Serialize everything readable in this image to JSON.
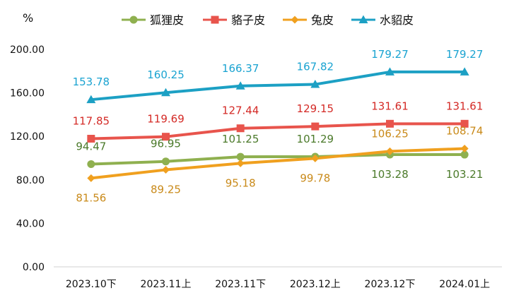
{
  "chart_data": {
    "type": "line",
    "unit_label": "%",
    "categories": [
      "2023.10下",
      "2023.11上",
      "2023.11下",
      "2023.12上",
      "2023.12下",
      "2024.01上"
    ],
    "ylim": [
      0,
      200
    ],
    "yticks": [
      "0.00",
      "40.00",
      "80.00",
      "120.00",
      "160.00",
      "200.00"
    ],
    "grid": false,
    "legend_position": "top",
    "series": [
      {
        "name": "狐狸皮",
        "values": [
          94.47,
          96.95,
          101.25,
          101.29,
          103.28,
          103.21
        ],
        "labels": [
          "94.47",
          "96.95",
          "101.25",
          "101.29",
          "103.28",
          "103.21"
        ],
        "color": "#8fb04f",
        "label_color": "#4b7a2a",
        "marker": "circle"
      },
      {
        "name": "貉子皮",
        "values": [
          117.85,
          119.69,
          127.44,
          129.15,
          131.61,
          131.61
        ],
        "labels": [
          "117.85",
          "119.69",
          "127.44",
          "129.15",
          "131.61",
          "131.61"
        ],
        "color": "#e8544c",
        "label_color": "#d42a26",
        "marker": "square"
      },
      {
        "name": "兔皮",
        "values": [
          81.56,
          89.25,
          95.18,
          99.78,
          106.25,
          108.74
        ],
        "labels": [
          "81.56",
          "89.25",
          "95.18",
          "99.78",
          "106.25",
          "108.74"
        ],
        "color": "#f0a01f",
        "label_color": "#c98a1a",
        "marker": "diamond"
      },
      {
        "name": "水貂皮",
        "values": [
          153.78,
          160.25,
          166.37,
          167.82,
          179.27,
          179.27
        ],
        "labels": [
          "153.78",
          "160.25",
          "166.37",
          "167.82",
          "179.27",
          "179.27"
        ],
        "color": "#1ca0c4",
        "label_color": "#1aa3d1",
        "marker": "triangle"
      }
    ]
  }
}
